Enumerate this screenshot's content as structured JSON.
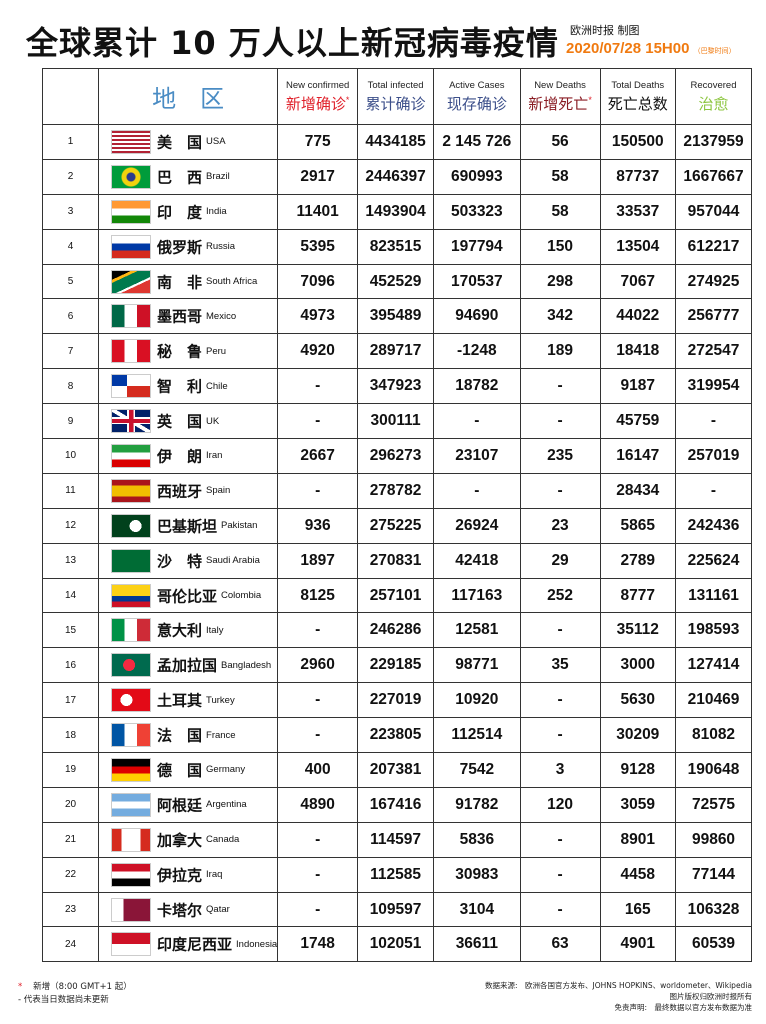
{
  "header": {
    "title": "全球累计 10 万人以上新冠病毒疫情",
    "publisher": "欧洲时报 制图",
    "date": "2020/07/28  15H00",
    "timezone": "（巴黎时间）"
  },
  "columns": [
    {
      "zh": "地　区",
      "en": "",
      "color": "#4a8cc4"
    },
    {
      "en": "New confirmed",
      "zh": "新增确诊",
      "color": "#e0202a",
      "star": "*"
    },
    {
      "en": "Total infected",
      "zh": "累计确诊",
      "color": "#3c4f8a"
    },
    {
      "en": "Active Cases",
      "zh": "现存确诊",
      "color": "#3c4f8a"
    },
    {
      "en": "New Deaths",
      "zh": "新增死亡",
      "color": "#8a1d24",
      "star": "*"
    },
    {
      "en": "Total Deaths",
      "zh": "死亡总数",
      "color": "#111111"
    },
    {
      "en": "Recovered",
      "zh": "治愈",
      "color": "#8cc63f"
    }
  ],
  "rows": [
    {
      "n": "1",
      "cn": "美　国",
      "en": "USA",
      "flag": "usa",
      "v": [
        "775",
        "4434185",
        "2 145 726",
        "56",
        "150500",
        "2137959"
      ]
    },
    {
      "n": "2",
      "cn": "巴　西",
      "en": "Brazil",
      "flag": "brazil",
      "v": [
        "2917",
        "2446397",
        "690993",
        "58",
        "87737",
        "1667667"
      ]
    },
    {
      "n": "3",
      "cn": "印　度",
      "en": "India",
      "flag": "india",
      "v": [
        "11401",
        "1493904",
        "503323",
        "58",
        "33537",
        "957044"
      ]
    },
    {
      "n": "4",
      "cn": "俄罗斯",
      "en": "Russia",
      "flag": "russia",
      "v": [
        "5395",
        "823515",
        "197794",
        "150",
        "13504",
        "612217"
      ]
    },
    {
      "n": "5",
      "cn": "南　非",
      "en": "South Africa",
      "flag": "southafrica",
      "v": [
        "7096",
        "452529",
        "170537",
        "298",
        "7067",
        "274925"
      ]
    },
    {
      "n": "6",
      "cn": "墨西哥",
      "en": "Mexico",
      "flag": "mexico",
      "v": [
        "4973",
        "395489",
        "94690",
        "342",
        "44022",
        "256777"
      ]
    },
    {
      "n": "7",
      "cn": "秘　鲁",
      "en": "Peru",
      "flag": "peru",
      "v": [
        "4920",
        "289717",
        "-1248",
        "189",
        "18418",
        "272547"
      ]
    },
    {
      "n": "8",
      "cn": "智　利",
      "en": "Chile",
      "flag": "chile",
      "v": [
        "-",
        "347923",
        "18782",
        "-",
        "9187",
        "319954"
      ]
    },
    {
      "n": "9",
      "cn": "英　国",
      "en": "UK",
      "flag": "uk",
      "v": [
        "-",
        "300111",
        "-",
        "-",
        "45759",
        "-"
      ]
    },
    {
      "n": "10",
      "cn": "伊　朗",
      "en": "Iran",
      "flag": "iran",
      "v": [
        "2667",
        "296273",
        "23107",
        "235",
        "16147",
        "257019"
      ]
    },
    {
      "n": "11",
      "cn": "西班牙",
      "en": "Spain",
      "flag": "spain",
      "v": [
        "-",
        "278782",
        "-",
        "-",
        "28434",
        "-"
      ]
    },
    {
      "n": "12",
      "cn": "巴基斯坦",
      "en": "Pakistan",
      "flag": "pakistan",
      "v": [
        "936",
        "275225",
        "26924",
        "23",
        "5865",
        "242436"
      ]
    },
    {
      "n": "13",
      "cn": "沙　特",
      "en": "Saudi Arabia",
      "flag": "saudi",
      "v": [
        "1897",
        "270831",
        "42418",
        "29",
        "2789",
        "225624"
      ]
    },
    {
      "n": "14",
      "cn": "哥伦比亚",
      "en": "Colombia",
      "flag": "colombia",
      "v": [
        "8125",
        "257101",
        "117163",
        "252",
        "8777",
        "131161"
      ]
    },
    {
      "n": "15",
      "cn": "意大利",
      "en": "Italy",
      "flag": "italy",
      "v": [
        "-",
        "246286",
        "12581",
        "-",
        "35112",
        "198593"
      ]
    },
    {
      "n": "16",
      "cn": "孟加拉国",
      "en": "Bangladesh",
      "flag": "bangladesh",
      "v": [
        "2960",
        "229185",
        "98771",
        "35",
        "3000",
        "127414"
      ]
    },
    {
      "n": "17",
      "cn": "土耳其",
      "en": "Turkey",
      "flag": "turkey",
      "v": [
        "-",
        "227019",
        "10920",
        "-",
        "5630",
        "210469"
      ]
    },
    {
      "n": "18",
      "cn": "法　国",
      "en": "France",
      "flag": "france",
      "v": [
        "-",
        "223805",
        "112514",
        "-",
        "30209",
        "81082"
      ]
    },
    {
      "n": "19",
      "cn": "德　国",
      "en": "Germany",
      "flag": "germany",
      "v": [
        "400",
        "207381",
        "7542",
        "3",
        "9128",
        "190648"
      ]
    },
    {
      "n": "20",
      "cn": "阿根廷",
      "en": "Argentina",
      "flag": "argentina",
      "v": [
        "4890",
        "167416",
        "91782",
        "120",
        "3059",
        "72575"
      ]
    },
    {
      "n": "21",
      "cn": "加拿大",
      "en": "Canada",
      "flag": "canada",
      "v": [
        "-",
        "114597",
        "5836",
        "-",
        "8901",
        "99860"
      ]
    },
    {
      "n": "22",
      "cn": "伊拉克",
      "en": "Iraq",
      "flag": "iraq",
      "v": [
        "-",
        "112585",
        "30983",
        "-",
        "4458",
        "77144"
      ]
    },
    {
      "n": "23",
      "cn": "卡塔尔",
      "en": "Qatar",
      "flag": "qatar",
      "v": [
        "-",
        "109597",
        "3104",
        "-",
        "165",
        "106328"
      ]
    },
    {
      "n": "24",
      "cn": "印度尼西亚",
      "en": "Indonesia",
      "flag": "indonesia",
      "v": [
        "1748",
        "102051",
        "36611",
        "63",
        "4901",
        "60539"
      ]
    }
  ],
  "footer": {
    "note1_star": "*",
    "note1": "新增（8:00 GMT+1 起）",
    "note2": "- 代表当日数据尚未更新",
    "source": "数据来源:　欧洲各国官方发布、JOHNS HOPKINS、worldometer、Wikipedia",
    "copyright": "图片版权归欧洲时报所有",
    "disclaimer": "免责声明:　最终数据以官方发布数据为准"
  }
}
